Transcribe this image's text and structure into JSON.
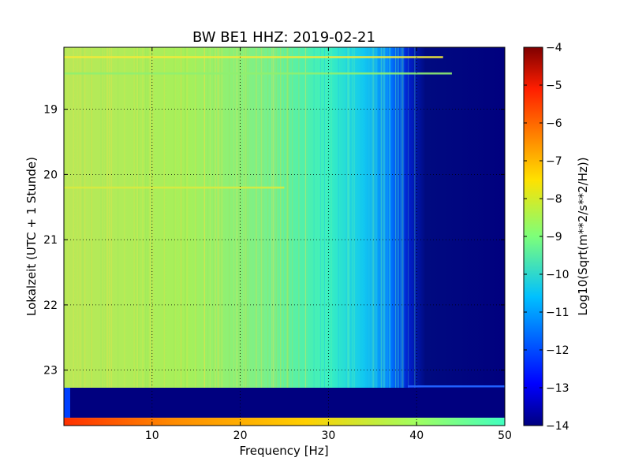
{
  "chart_data": {
    "type": "heatmap",
    "title": "BW BE1 HHZ: 2019-02-21",
    "xlabel": "Frequency [Hz]",
    "ylabel": "Lokalzeit (UTC + 1 Stunde)",
    "xlim": [
      0,
      50
    ],
    "ylim": [
      18.05,
      23.85
    ],
    "y_inverted": true,
    "grid": true,
    "x_ticks": [
      10,
      20,
      30,
      40,
      50
    ],
    "y_ticks": [
      19,
      20,
      21,
      22,
      23
    ],
    "colormap": "jet",
    "colorbar": {
      "label": "Log10(Sqrt(m**2/s**2/Hz))",
      "range": [
        -14,
        -4
      ],
      "ticks": [
        -4,
        -5,
        -6,
        -7,
        -8,
        -9,
        -10,
        -11,
        -12,
        -13,
        -14
      ]
    },
    "bands": [
      {
        "x_range": [
          0,
          28
        ],
        "value_range": [
          -8.5,
          -8.9
        ]
      },
      {
        "x_range": [
          28,
          38
        ],
        "value_range": [
          -9.5,
          -10.6
        ]
      },
      {
        "x_range": [
          38,
          44
        ],
        "value_range": [
          -11,
          -13.5
        ]
      },
      {
        "x_range": [
          44,
          50
        ],
        "value": -14
      }
    ],
    "features": [
      {
        "y": 18.2,
        "x_range": [
          0,
          43
        ],
        "value": -7.7
      },
      {
        "y": 18.45,
        "x_range": [
          0,
          44
        ],
        "value": -9
      },
      {
        "y": 20.2,
        "x_range": [
          0,
          25
        ],
        "value": -8.2
      },
      {
        "y_range": [
          23.27,
          23.73
        ],
        "x_range": [
          0,
          50
        ],
        "value": -14
      },
      {
        "y_range": [
          23.73,
          23.85
        ],
        "x_range": [
          0,
          50
        ],
        "value_range": [
          -6,
          -10
        ]
      }
    ]
  }
}
